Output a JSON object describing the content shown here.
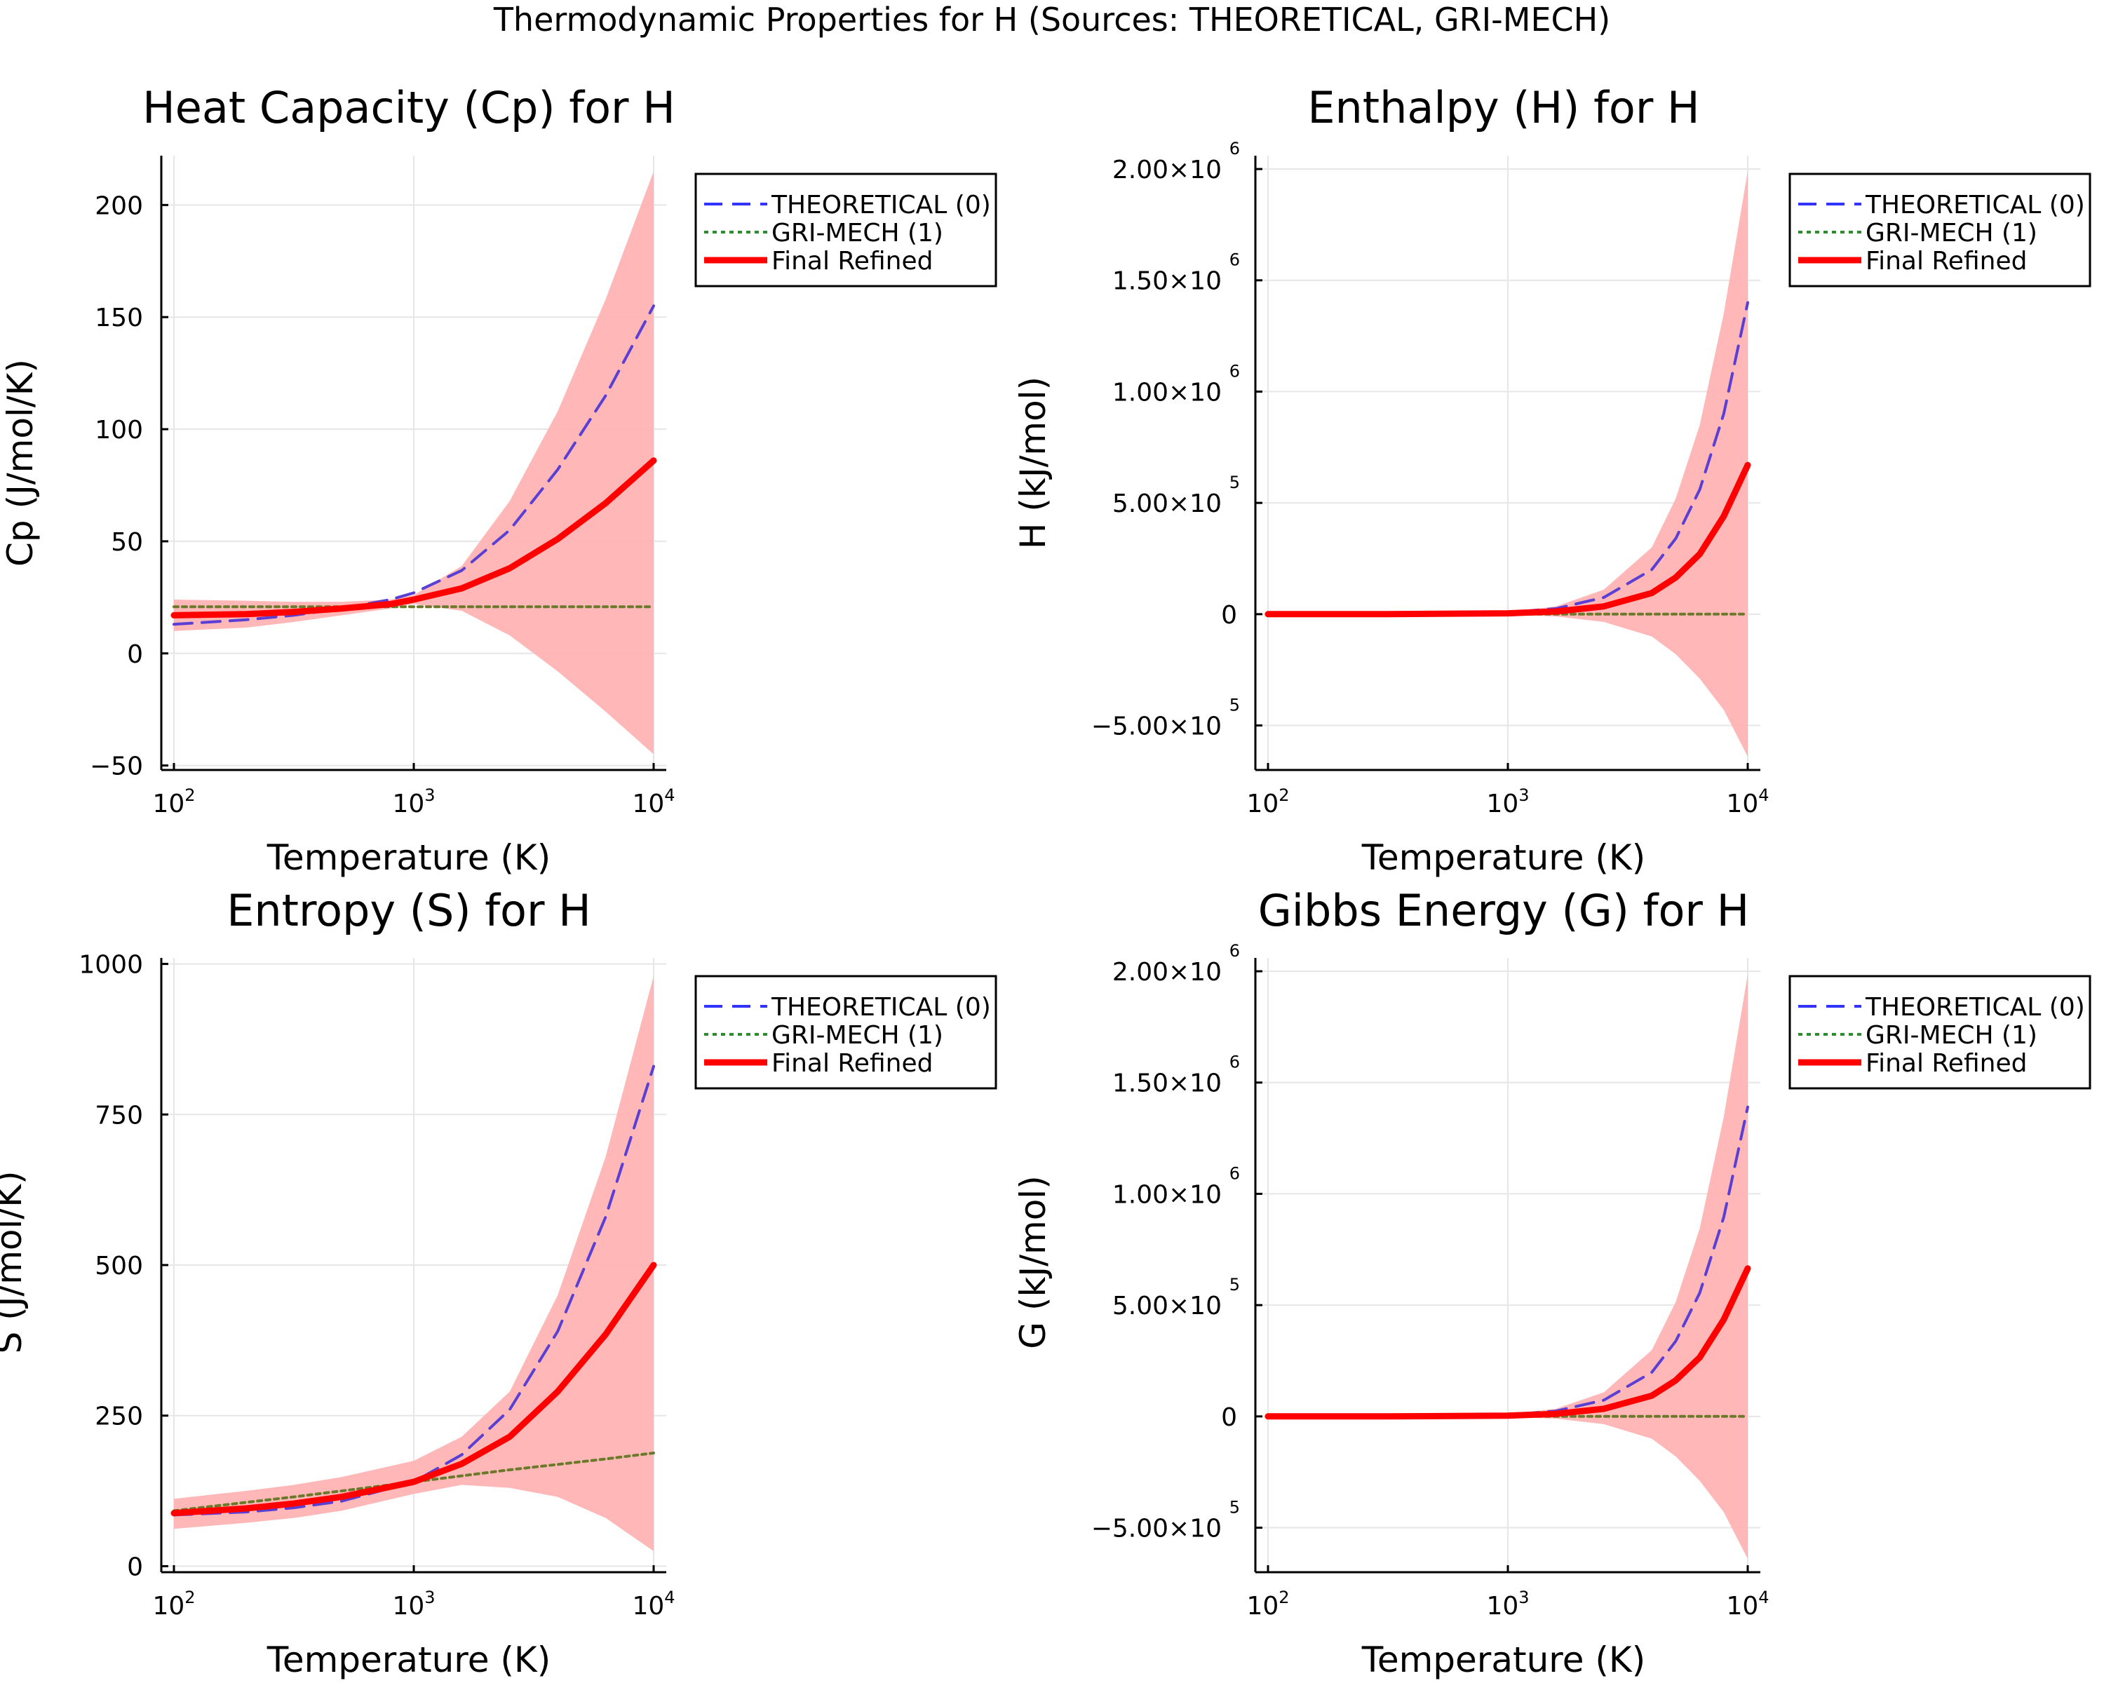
{
  "figure": {
    "suptitle": "Thermodynamic Properties for H (Sources: THEORETICAL, GRI-MECH)",
    "colors": {
      "theoretical": "#5a3fd4",
      "gri_mech": "#6b7a2a",
      "final": "#ff0000",
      "band": "#ffb3b3",
      "legend_theoretical_swatch": "#3333ff",
      "legend_gri_swatch": "#2e8b2e"
    }
  },
  "legend": {
    "entries": [
      "THEORETICAL (0)",
      "GRI-MECH (1)",
      "Final Refined"
    ]
  },
  "chart_data": [
    {
      "type": "line",
      "title": "Heat Capacity (Cp) for H",
      "xlabel": "Temperature (K)",
      "ylabel": "Cp (J/mol/K)",
      "xscale": "log",
      "xlim": [
        100,
        10000
      ],
      "ylim": [
        -52,
        222
      ],
      "xticks": [
        {
          "v": 100,
          "base": "10",
          "exp": "2"
        },
        {
          "v": 1000,
          "base": "10",
          "exp": "3"
        },
        {
          "v": 10000,
          "base": "10",
          "exp": "4"
        }
      ],
      "yticks": [
        {
          "v": -50,
          "label": "−50"
        },
        {
          "v": 0,
          "label": "0"
        },
        {
          "v": 50,
          "label": "50"
        },
        {
          "v": 100,
          "label": "100"
        },
        {
          "v": 150,
          "label": "150"
        },
        {
          "v": 200,
          "label": "200"
        }
      ],
      "x": [
        100,
        200,
        316,
        500,
        800,
        1000,
        1585,
        2512,
        3981,
        6310,
        10000
      ],
      "series": [
        {
          "name": "THEORETICAL (0)",
          "style": "dash",
          "values": [
            13,
            15,
            17,
            20,
            24,
            27,
            37,
            55,
            82,
            115,
            155
          ]
        },
        {
          "name": "GRI-MECH (1)",
          "style": "dot",
          "values": [
            20.8,
            20.8,
            20.8,
            20.8,
            20.8,
            20.8,
            20.8,
            20.8,
            20.8,
            20.8,
            20.8
          ]
        },
        {
          "name": "Final Refined",
          "style": "solid",
          "values": [
            17,
            17.5,
            18.5,
            20,
            22,
            24,
            29,
            38,
            51,
            67,
            86
          ]
        }
      ],
      "band": {
        "upper": [
          24,
          23.5,
          23,
          23,
          24,
          26,
          39,
          68,
          108,
          158,
          215
        ],
        "lower": [
          10,
          11.5,
          14,
          17,
          20,
          22,
          19,
          8,
          -8,
          -26,
          -45
        ]
      }
    },
    {
      "type": "line",
      "title": "Enthalpy (H) for H",
      "xlabel": "Temperature (K)",
      "ylabel": "H (kJ/mol)",
      "xscale": "log",
      "xlim": [
        100,
        10000
      ],
      "ylim": [
        -700000,
        2060000
      ],
      "xticks": [
        {
          "v": 100,
          "base": "10",
          "exp": "2"
        },
        {
          "v": 1000,
          "base": "10",
          "exp": "3"
        },
        {
          "v": 10000,
          "base": "10",
          "exp": "4"
        }
      ],
      "yticks": [
        {
          "v": -500000,
          "label": "−5.00×10",
          "exp": "5"
        },
        {
          "v": 0,
          "label": "0"
        },
        {
          "v": 500000,
          "label": "5.00×10",
          "exp": "5"
        },
        {
          "v": 1000000,
          "label": "1.00×10",
          "exp": "6"
        },
        {
          "v": 1500000,
          "label": "1.50×10",
          "exp": "6"
        },
        {
          "v": 2000000,
          "label": "2.00×10",
          "exp": "6"
        }
      ],
      "x": [
        100,
        316,
        1000,
        1585,
        2512,
        3981,
        5012,
        6310,
        7943,
        10000
      ],
      "series": [
        {
          "name": "THEORETICAL (0)",
          "style": "dash",
          "values": [
            0,
            0,
            8000,
            25000,
            75000,
            200000,
            340000,
            560000,
            900000,
            1400000
          ]
        },
        {
          "name": "GRI-MECH (1)",
          "style": "dot",
          "values": [
            0,
            0,
            0,
            0,
            0,
            0,
            0,
            0,
            0,
            0
          ]
        },
        {
          "name": "Final Refined",
          "style": "solid",
          "values": [
            0,
            0,
            4000,
            12000,
            35000,
            95000,
            165000,
            270000,
            440000,
            670000
          ]
        }
      ],
      "band": {
        "upper": [
          0,
          0,
          10000,
          35000,
          110000,
          300000,
          520000,
          850000,
          1350000,
          1990000
        ],
        "lower": [
          0,
          0,
          -2000,
          -10000,
          -35000,
          -100000,
          -180000,
          -290000,
          -430000,
          -640000
        ]
      }
    },
    {
      "type": "line",
      "title": "Entropy (S) for H",
      "xlabel": "Temperature (K)",
      "ylabel": "S (J/mol/K)",
      "xscale": "log",
      "xlim": [
        100,
        10000
      ],
      "ylim": [
        -10,
        1010
      ],
      "xticks": [
        {
          "v": 100,
          "base": "10",
          "exp": "2"
        },
        {
          "v": 1000,
          "base": "10",
          "exp": "3"
        },
        {
          "v": 10000,
          "base": "10",
          "exp": "4"
        }
      ],
      "yticks": [
        {
          "v": 0,
          "label": "0"
        },
        {
          "v": 250,
          "label": "250"
        },
        {
          "v": 500,
          "label": "500"
        },
        {
          "v": 750,
          "label": "750"
        },
        {
          "v": 1000,
          "label": "1000"
        }
      ],
      "x": [
        100,
        200,
        316,
        500,
        1000,
        1585,
        2512,
        3981,
        6310,
        10000
      ],
      "series": [
        {
          "name": "THEORETICAL (0)",
          "style": "dash",
          "values": [
            85,
            90,
            97,
            108,
            140,
            185,
            260,
            390,
            580,
            830
          ]
        },
        {
          "name": "GRI-MECH (1)",
          "style": "dot",
          "values": [
            92,
            106,
            115,
            125,
            140,
            150,
            160,
            169,
            178,
            188
          ]
        },
        {
          "name": "Final Refined",
          "style": "solid",
          "values": [
            88,
            96,
            104,
            115,
            140,
            170,
            215,
            290,
            385,
            500
          ]
        }
      ],
      "band": {
        "upper": [
          112,
          125,
          135,
          148,
          175,
          215,
          290,
          450,
          680,
          980
        ],
        "lower": [
          62,
          72,
          80,
          92,
          120,
          135,
          130,
          115,
          80,
          25
        ]
      }
    },
    {
      "type": "line",
      "title": "Gibbs Energy (G) for H",
      "xlabel": "Temperature (K)",
      "ylabel": "G (kJ/mol)",
      "xscale": "log",
      "xlim": [
        100,
        10000
      ],
      "ylim": [
        -700000,
        2060000
      ],
      "xticks": [
        {
          "v": 100,
          "base": "10",
          "exp": "2"
        },
        {
          "v": 1000,
          "base": "10",
          "exp": "3"
        },
        {
          "v": 10000,
          "base": "10",
          "exp": "4"
        }
      ],
      "yticks": [
        {
          "v": -500000,
          "label": "−5.00×10",
          "exp": "5"
        },
        {
          "v": 0,
          "label": "0"
        },
        {
          "v": 500000,
          "label": "5.00×10",
          "exp": "5"
        },
        {
          "v": 1000000,
          "label": "1.00×10",
          "exp": "6"
        },
        {
          "v": 1500000,
          "label": "1.50×10",
          "exp": "6"
        },
        {
          "v": 2000000,
          "label": "2.00×10",
          "exp": "6"
        }
      ],
      "x": [
        100,
        316,
        1000,
        1585,
        2512,
        3981,
        5012,
        6310,
        7943,
        10000
      ],
      "series": [
        {
          "name": "THEORETICAL (0)",
          "style": "dash",
          "values": [
            0,
            0,
            7000,
            24000,
            73000,
            198000,
            338000,
            555000,
            895000,
            1390000
          ]
        },
        {
          "name": "GRI-MECH (1)",
          "style": "dot",
          "values": [
            0,
            0,
            0,
            0,
            0,
            0,
            0,
            0,
            0,
            0
          ]
        },
        {
          "name": "Final Refined",
          "style": "solid",
          "values": [
            0,
            0,
            3500,
            11500,
            34000,
            93000,
            162000,
            265000,
            435000,
            665000
          ]
        }
      ],
      "band": {
        "upper": [
          0,
          0,
          9500,
          34000,
          108000,
          298000,
          515000,
          845000,
          1345000,
          1985000
        ],
        "lower": [
          0,
          0,
          -2000,
          -10000,
          -35000,
          -100000,
          -180000,
          -290000,
          -430000,
          -640000
        ]
      }
    }
  ]
}
